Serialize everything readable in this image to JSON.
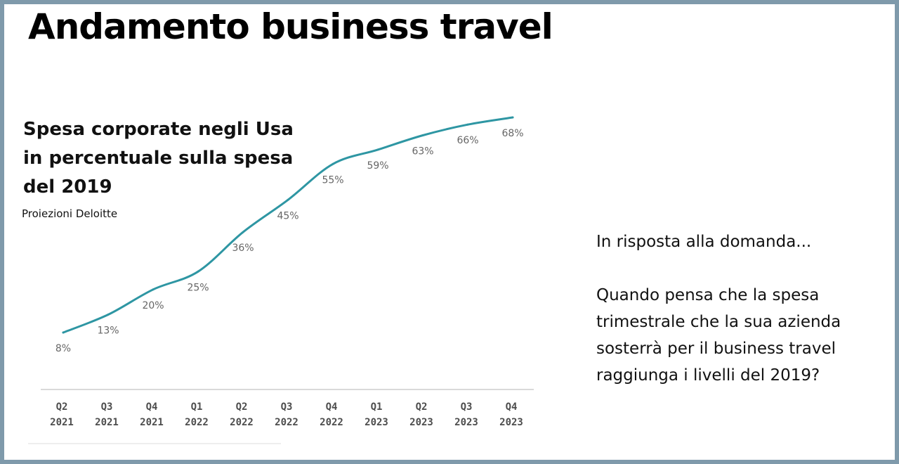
{
  "title": "Andamento business travel",
  "chart_title_lines": [
    "Spesa corporate negli Usa",
    "in percentuale sulla spesa",
    "del 2019"
  ],
  "source": "Proiezioni Deloitte",
  "prompt_text": "In risposta alla domanda...",
  "question_lines": [
    "Quando pensa che la spesa",
    "trimestrale che la sua azienda",
    "sosterrà per il business travel",
    "raggiunga i livelli del 2019?"
  ],
  "colors": {
    "line": "#2e96a3",
    "frame": "#7f9aab",
    "label": "#666666",
    "axis_label": "#4d4d4d"
  },
  "chart_data": {
    "type": "line",
    "title": "Spesa corporate negli Usa in percentuale sulla spesa del 2019",
    "categories": [
      [
        "Q2",
        "2021"
      ],
      [
        "Q3",
        "2021"
      ],
      [
        "Q4",
        "2021"
      ],
      [
        "Q1",
        "2022"
      ],
      [
        "Q2",
        "2022"
      ],
      [
        "Q3",
        "2022"
      ],
      [
        "Q4",
        "2022"
      ],
      [
        "Q1",
        "2023"
      ],
      [
        "Q2",
        "2023"
      ],
      [
        "Q3",
        "2023"
      ],
      [
        "Q4",
        "2023"
      ]
    ],
    "values": [
      8,
      13,
      20,
      25,
      36,
      45,
      55,
      59,
      63,
      66,
      68
    ],
    "value_labels": [
      "8%",
      "13%",
      "20%",
      "25%",
      "36%",
      "45%",
      "55%",
      "59%",
      "63%",
      "66%",
      "68%"
    ],
    "unit": "%",
    "grid": false,
    "legend": "none"
  }
}
